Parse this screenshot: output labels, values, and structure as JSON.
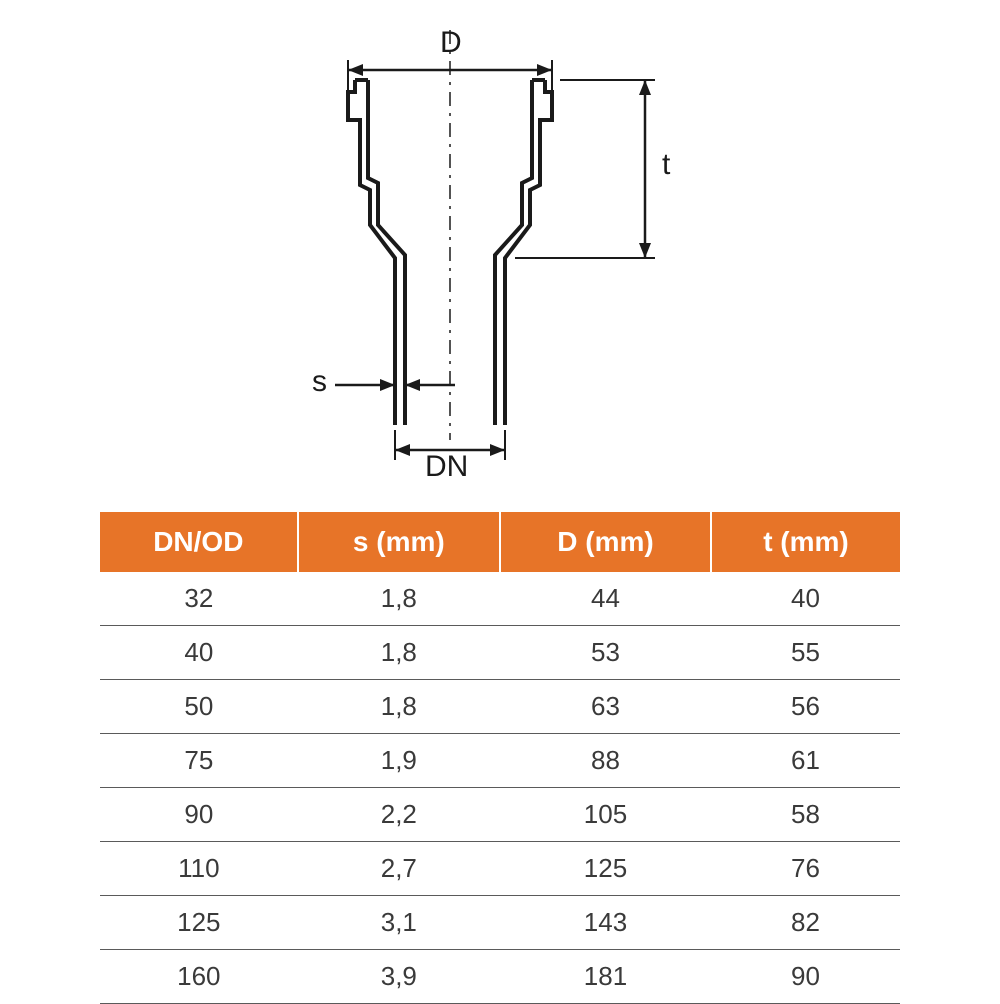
{
  "diagram": {
    "labels": {
      "D": "D",
      "t": "t",
      "s": "s",
      "DN": "DN"
    },
    "stroke_color": "#1a1a1a",
    "stroke_width_outline": 4,
    "stroke_width_dim": 2.5,
    "background_color": "#ffffff",
    "centerline_dash": "12 6 3 6"
  },
  "table": {
    "header_bg": "#e77428",
    "header_fg": "#ffffff",
    "row_border": "#5a5a5a",
    "text_color": "#3a3a3a",
    "columns": [
      "DN/OD",
      "s (mm)",
      "D (mm)",
      "t (mm)"
    ],
    "rows": [
      [
        "32",
        "1,8",
        "44",
        "40"
      ],
      [
        "40",
        "1,8",
        "53",
        "55"
      ],
      [
        "50",
        "1,8",
        "63",
        "56"
      ],
      [
        "75",
        "1,9",
        "88",
        "61"
      ],
      [
        "90",
        "2,2",
        "105",
        "58"
      ],
      [
        "110",
        "2,7",
        "125",
        "76"
      ],
      [
        "125",
        "3,1",
        "143",
        "82"
      ],
      [
        "160",
        "3,9",
        "181",
        "90"
      ]
    ]
  }
}
